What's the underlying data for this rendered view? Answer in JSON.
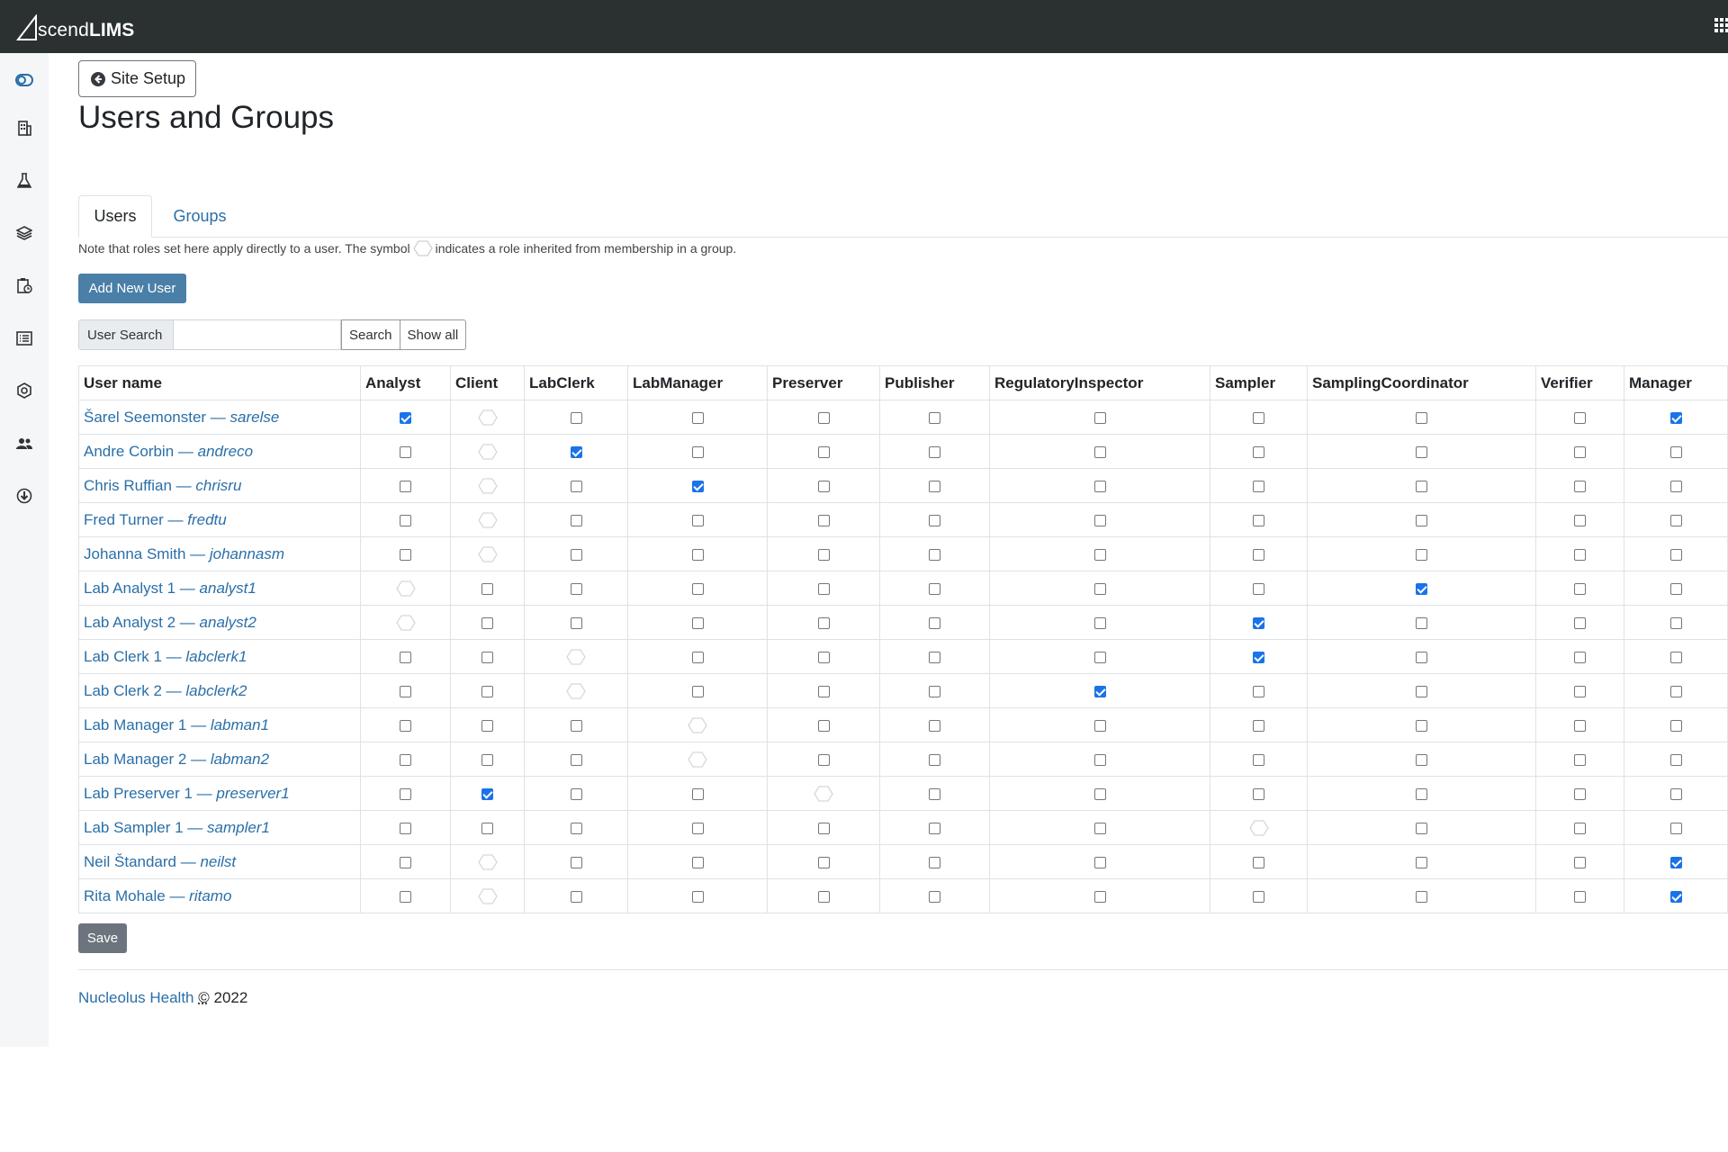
{
  "app": {
    "logo_light": "scend",
    "logo_bold": "LIMS",
    "sidebar_icons": [
      "toggle-icon",
      "building-icon",
      "flask-icon",
      "layers-icon",
      "clipboard-icon",
      "list-icon",
      "gear-icon",
      "users-icon",
      "download-icon"
    ]
  },
  "header": {
    "back_label": "Site Setup",
    "title": "Users and Groups"
  },
  "tabs": [
    {
      "label": "Users"
    },
    {
      "label": "Groups"
    }
  ],
  "note": {
    "before": "Note that roles set here apply directly to a user. The symbol",
    "after": "indicates a role inherited from membership in a group."
  },
  "add_user_label": "Add New User",
  "search": {
    "label": "User Search",
    "value": "",
    "search_btn": "Search",
    "show_all_btn": "Show all"
  },
  "table": {
    "columns": [
      "User name",
      "Analyst",
      "Client",
      "LabClerk",
      "LabManager",
      "Preserver",
      "Publisher",
      "RegulatoryInspector",
      "Sampler",
      "SamplingCoordinator",
      "Verifier",
      "Manager"
    ],
    "rows": [
      {
        "name": "Šarel Seemonster",
        "login": "sarelse",
        "roles": [
          "c",
          "h",
          "u",
          "u",
          "u",
          "u",
          "u",
          "u",
          "u",
          "u",
          "c"
        ]
      },
      {
        "name": "Andre Corbin",
        "login": "andreco",
        "roles": [
          "u",
          "h",
          "c",
          "u",
          "u",
          "u",
          "u",
          "u",
          "u",
          "u",
          "u"
        ]
      },
      {
        "name": "Chris Ruffian",
        "login": "chrisru",
        "roles": [
          "u",
          "h",
          "u",
          "c",
          "u",
          "u",
          "u",
          "u",
          "u",
          "u",
          "u"
        ]
      },
      {
        "name": "Fred Turner",
        "login": "fredtu",
        "roles": [
          "u",
          "h",
          "u",
          "u",
          "u",
          "u",
          "u",
          "u",
          "u",
          "u",
          "u"
        ]
      },
      {
        "name": "Johanna Smith",
        "login": "johannasm",
        "roles": [
          "u",
          "h",
          "u",
          "u",
          "u",
          "u",
          "u",
          "u",
          "u",
          "u",
          "u"
        ]
      },
      {
        "name": "Lab Analyst 1",
        "login": "analyst1",
        "roles": [
          "h",
          "u",
          "u",
          "u",
          "u",
          "u",
          "u",
          "u",
          "c",
          "u",
          "u"
        ]
      },
      {
        "name": "Lab Analyst 2",
        "login": "analyst2",
        "roles": [
          "h",
          "u",
          "u",
          "u",
          "u",
          "u",
          "u",
          "c",
          "u",
          "u",
          "u"
        ]
      },
      {
        "name": "Lab Clerk 1",
        "login": "labclerk1",
        "roles": [
          "u",
          "u",
          "h",
          "u",
          "u",
          "u",
          "u",
          "c",
          "u",
          "u",
          "u"
        ]
      },
      {
        "name": "Lab Clerk 2",
        "login": "labclerk2",
        "roles": [
          "u",
          "u",
          "h",
          "u",
          "u",
          "u",
          "c",
          "u",
          "u",
          "u",
          "u"
        ]
      },
      {
        "name": "Lab Manager 1",
        "login": "labman1",
        "roles": [
          "u",
          "u",
          "u",
          "h",
          "u",
          "u",
          "u",
          "u",
          "u",
          "u",
          "u"
        ]
      },
      {
        "name": "Lab Manager 2",
        "login": "labman2",
        "roles": [
          "u",
          "u",
          "u",
          "h",
          "u",
          "u",
          "u",
          "u",
          "u",
          "u",
          "u"
        ]
      },
      {
        "name": "Lab Preserver 1",
        "login": "preserver1",
        "roles": [
          "u",
          "c",
          "u",
          "u",
          "h",
          "u",
          "u",
          "u",
          "u",
          "u",
          "u"
        ]
      },
      {
        "name": "Lab Sampler 1",
        "login": "sampler1",
        "roles": [
          "u",
          "u",
          "u",
          "u",
          "u",
          "u",
          "u",
          "h",
          "u",
          "u",
          "u"
        ]
      },
      {
        "name": "Neil Štandard",
        "login": "neilst",
        "roles": [
          "u",
          "h",
          "u",
          "u",
          "u",
          "u",
          "u",
          "u",
          "u",
          "u",
          "c"
        ]
      },
      {
        "name": "Rita Mohale",
        "login": "ritamo",
        "roles": [
          "u",
          "h",
          "u",
          "u",
          "u",
          "u",
          "u",
          "u",
          "u",
          "u",
          "c"
        ]
      }
    ]
  },
  "save_label": "Save",
  "footer": {
    "link": "Nucleolus Health",
    "copyright": "©",
    "year": "2022"
  }
}
